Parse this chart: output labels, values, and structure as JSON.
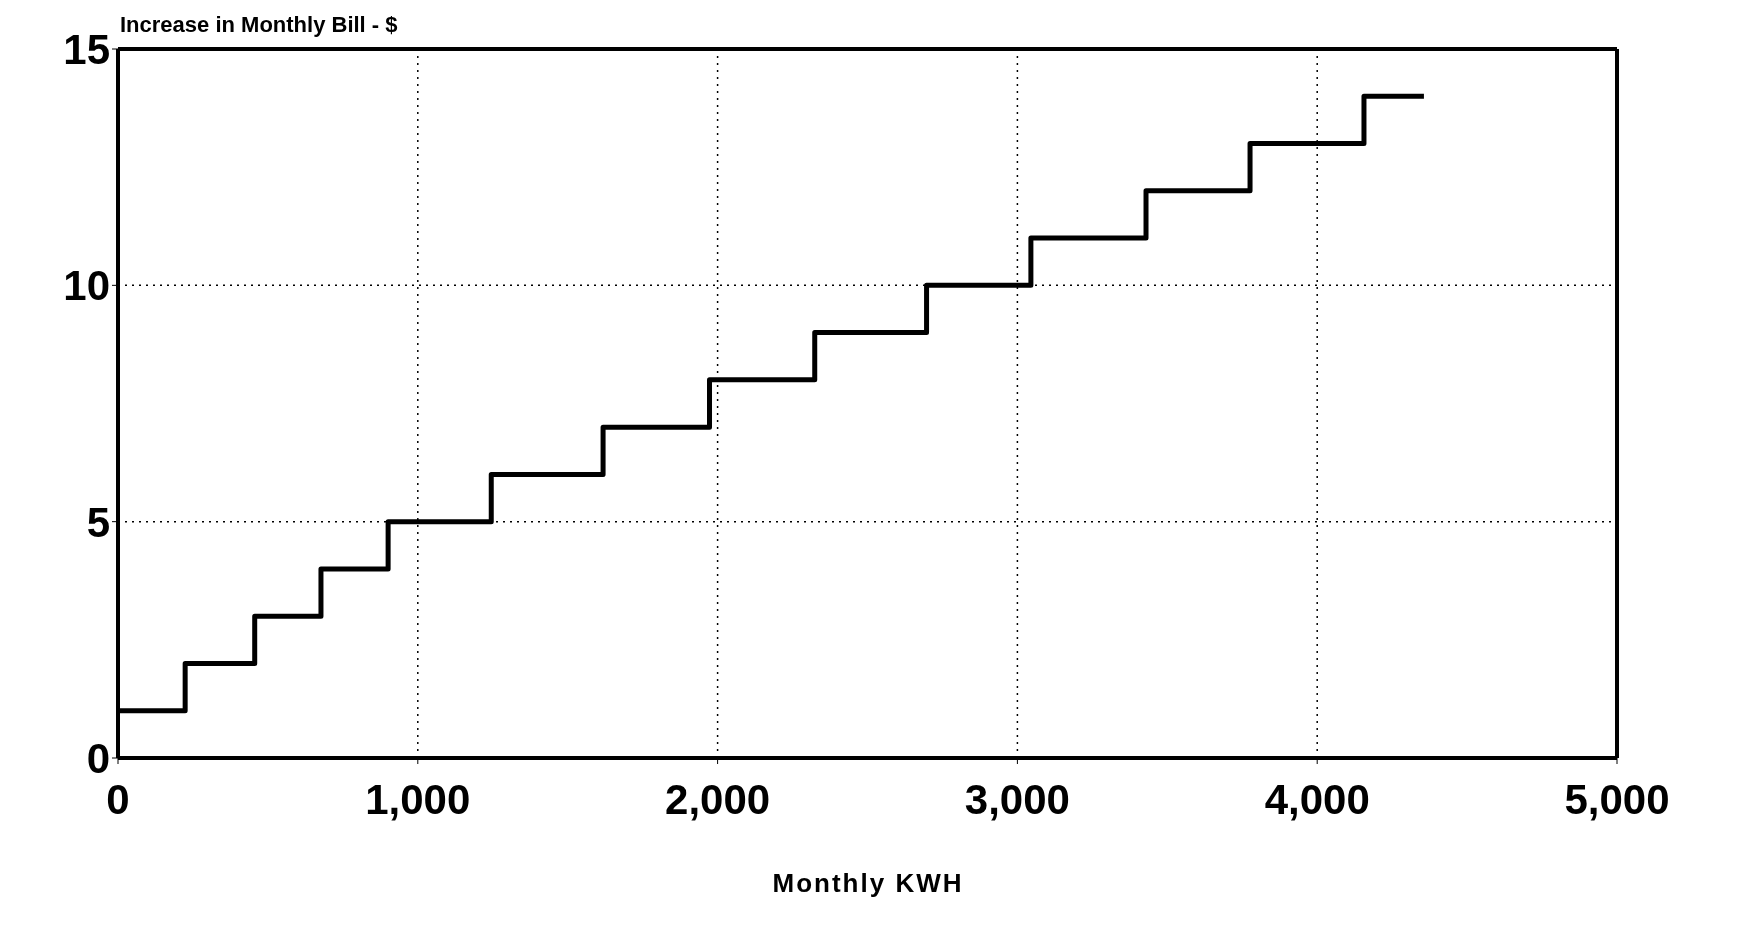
{
  "chart_data": {
    "type": "step",
    "ylabel": "Increase in Monthly Bill - $",
    "xlabel": "Monthly KWH",
    "x": [
      0,
      224,
      456,
      677,
      901,
      1245,
      1618,
      1973,
      2324,
      2697,
      3045,
      3429,
      3776,
      4156,
      4356
    ],
    "series": [
      {
        "color": "#000000",
        "values": [
          1,
          2,
          3,
          4,
          5,
          6,
          7,
          8,
          9,
          10,
          11,
          12,
          13,
          14,
          14
        ]
      }
    ],
    "xlim": [
      0,
      5000
    ],
    "xticks": [
      0,
      {
        "value": 1000,
        "label": "1,000"
      },
      {
        "value": 2000,
        "label": "2,000"
      },
      {
        "value": 3000,
        "label": "3,000"
      },
      {
        "value": 4000,
        "label": "4,000"
      },
      {
        "value": 5000,
        "label": "5,000"
      }
    ],
    "ylim": [
      0,
      15
    ],
    "yticks": [
      0,
      5,
      10,
      15
    ],
    "grid": true,
    "marker": "none",
    "line_style": "solid"
  }
}
